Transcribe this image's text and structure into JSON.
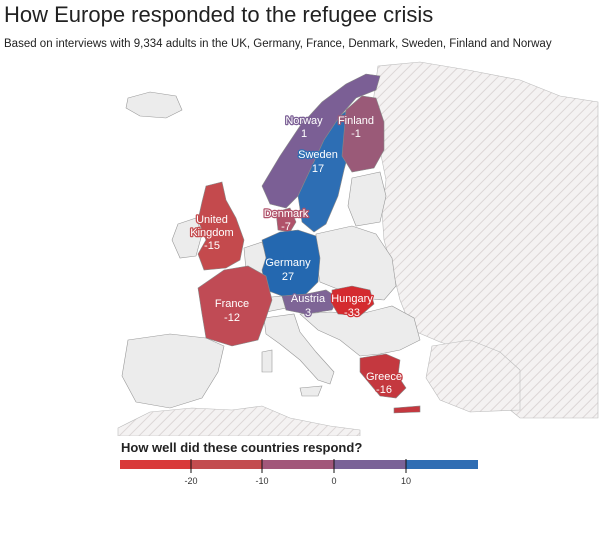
{
  "header": {
    "title": "How Europe responded to the refugee crisis",
    "subtitle": "Based on interviews with 9,334 adults in the UK, Germany, France, Denmark, Sweden, Finland and Norway"
  },
  "map": {
    "background_pattern": "diagonal-hatch-light-grey",
    "countries": [
      {
        "key": "norway",
        "name": "Norway",
        "value": "1",
        "fill": "#7b5f95"
      },
      {
        "key": "finland",
        "name": "Finland",
        "value": "-1",
        "fill": "#9a5a78"
      },
      {
        "key": "sweden",
        "name": "Sweden",
        "value": "17",
        "fill": "#2d6eb4"
      },
      {
        "key": "uk",
        "name": "United Kingdom",
        "name_lines": [
          "United",
          "Kingdom"
        ],
        "value": "-15",
        "fill": "#c44a4d"
      },
      {
        "key": "denmark",
        "name": "Denmark",
        "value": "-7",
        "fill": "#b0526a"
      },
      {
        "key": "germany",
        "name": "Germany",
        "value": "27",
        "fill": "#2468b0"
      },
      {
        "key": "france",
        "name": "France",
        "value": "-12",
        "fill": "#c04b55"
      },
      {
        "key": "austria",
        "name": "Austria",
        "value": "3",
        "fill": "#7e6596"
      },
      {
        "key": "hungary",
        "name": "Hungary",
        "value": "-33",
        "fill": "#d42b2f"
      },
      {
        "key": "greece",
        "name": "Greece",
        "value": "-16",
        "fill": "#c4383f"
      }
    ]
  },
  "legend": {
    "title": "How well did these countries respond?",
    "ticks": [
      "-20",
      "-10",
      "0",
      "10"
    ],
    "colors": [
      "#d93a3a",
      "#c34c4f",
      "#a2577a",
      "#7a6297",
      "#2f6db3"
    ]
  }
}
